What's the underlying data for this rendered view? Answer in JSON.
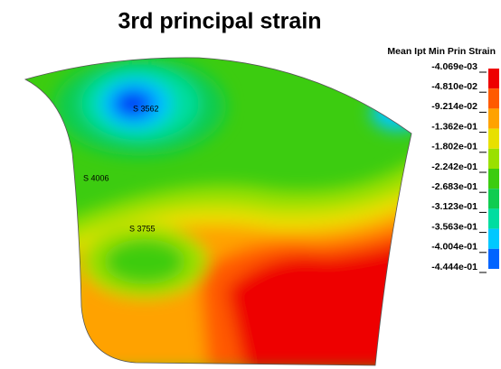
{
  "title": "3rd principal strain",
  "legend": {
    "title": "Mean  Ipt Min Prin Strain",
    "levels": [
      "-4.069e-03",
      "-4.810e-02",
      "-9.214e-02",
      "-1.362e-01",
      "-1.802e-01",
      "-2.242e-01",
      "-2.683e-01",
      "-3.123e-01",
      "-3.563e-01",
      "-4.004e-01",
      "-4.444e-01"
    ],
    "colors": [
      "#ee0000",
      "#ff5a00",
      "#ffa200",
      "#e8e000",
      "#9ae000",
      "#3ccc10",
      "#10cc50",
      "#00dda0",
      "#00c8ff",
      "#0064ff",
      "#0000f0"
    ]
  },
  "annotations": [
    "S 3562",
    "S 4006",
    "S 3755"
  ]
}
